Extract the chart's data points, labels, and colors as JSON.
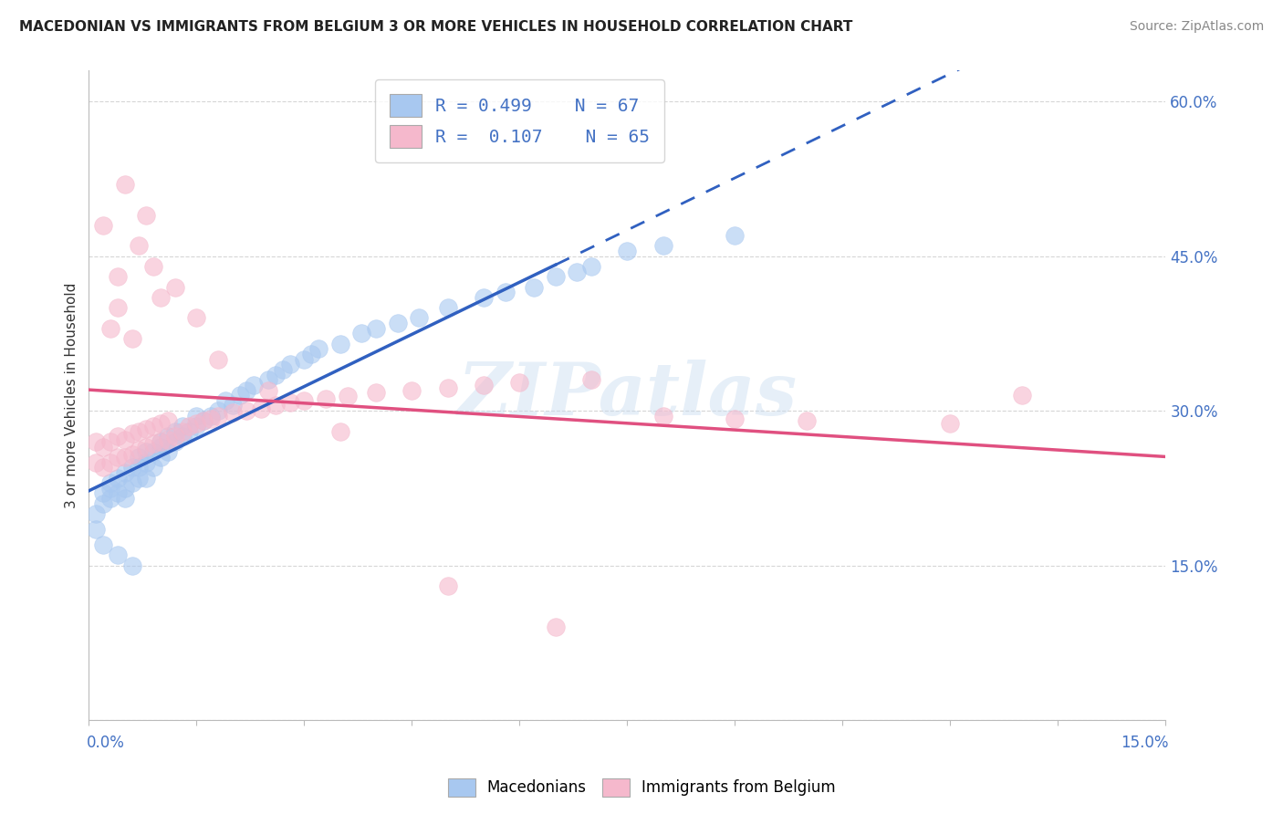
{
  "title": "MACEDONIAN VS IMMIGRANTS FROM BELGIUM 3 OR MORE VEHICLES IN HOUSEHOLD CORRELATION CHART",
  "source": "Source: ZipAtlas.com",
  "xmin": 0.0,
  "xmax": 0.15,
  "ymin": 0.0,
  "ymax": 0.63,
  "yticks": [
    0.0,
    0.15,
    0.3,
    0.45,
    0.6
  ],
  "yticklabels": [
    "",
    "15.0%",
    "30.0%",
    "45.0%",
    "60.0%"
  ],
  "color_blue": "#A8C8F0",
  "color_pink": "#F5B8CC",
  "color_blue_line": "#3060C0",
  "color_pink_line": "#E05080",
  "color_axis_text": "#4472C4",
  "watermark": "ZIPatlas",
  "ylabel_label": "3 or more Vehicles in Household",
  "legend_label1": "Macedonians",
  "legend_label2": "Immigrants from Belgium",
  "r1": 0.499,
  "n1": 67,
  "r2": 0.107,
  "n2": 65,
  "mac_x": [
    0.001,
    0.002,
    0.002,
    0.003,
    0.003,
    0.003,
    0.004,
    0.004,
    0.005,
    0.005,
    0.005,
    0.006,
    0.006,
    0.007,
    0.007,
    0.007,
    0.008,
    0.008,
    0.008,
    0.009,
    0.009,
    0.01,
    0.01,
    0.01,
    0.011,
    0.011,
    0.012,
    0.012,
    0.013,
    0.013,
    0.014,
    0.015,
    0.015,
    0.016,
    0.017,
    0.018,
    0.019,
    0.02,
    0.021,
    0.022,
    0.023,
    0.025,
    0.026,
    0.027,
    0.028,
    0.03,
    0.031,
    0.032,
    0.035,
    0.038,
    0.04,
    0.043,
    0.046,
    0.05,
    0.055,
    0.058,
    0.062,
    0.065,
    0.068,
    0.07,
    0.075,
    0.08,
    0.09,
    0.001,
    0.002,
    0.004,
    0.006
  ],
  "mac_y": [
    0.2,
    0.21,
    0.22,
    0.215,
    0.225,
    0.23,
    0.22,
    0.235,
    0.215,
    0.225,
    0.24,
    0.23,
    0.245,
    0.235,
    0.245,
    0.255,
    0.235,
    0.25,
    0.26,
    0.245,
    0.26,
    0.255,
    0.265,
    0.27,
    0.26,
    0.275,
    0.27,
    0.28,
    0.275,
    0.285,
    0.28,
    0.285,
    0.295,
    0.29,
    0.295,
    0.3,
    0.31,
    0.305,
    0.315,
    0.32,
    0.325,
    0.33,
    0.335,
    0.34,
    0.345,
    0.35,
    0.355,
    0.36,
    0.365,
    0.375,
    0.38,
    0.385,
    0.39,
    0.4,
    0.41,
    0.415,
    0.42,
    0.43,
    0.435,
    0.44,
    0.455,
    0.46,
    0.47,
    0.185,
    0.17,
    0.16,
    0.15
  ],
  "bel_x": [
    0.001,
    0.001,
    0.002,
    0.002,
    0.003,
    0.003,
    0.004,
    0.004,
    0.005,
    0.005,
    0.006,
    0.006,
    0.007,
    0.007,
    0.008,
    0.008,
    0.009,
    0.009,
    0.01,
    0.01,
    0.011,
    0.011,
    0.012,
    0.013,
    0.014,
    0.015,
    0.016,
    0.017,
    0.018,
    0.02,
    0.022,
    0.024,
    0.026,
    0.028,
    0.03,
    0.033,
    0.036,
    0.04,
    0.045,
    0.05,
    0.055,
    0.06,
    0.07,
    0.08,
    0.09,
    0.1,
    0.12,
    0.13,
    0.002,
    0.004,
    0.005,
    0.007,
    0.008,
    0.003,
    0.004,
    0.006,
    0.009,
    0.01,
    0.012,
    0.015,
    0.018,
    0.025,
    0.035,
    0.05,
    0.065
  ],
  "bel_y": [
    0.25,
    0.27,
    0.245,
    0.265,
    0.25,
    0.27,
    0.255,
    0.275,
    0.255,
    0.272,
    0.258,
    0.278,
    0.262,
    0.28,
    0.265,
    0.282,
    0.268,
    0.285,
    0.27,
    0.288,
    0.272,
    0.29,
    0.275,
    0.28,
    0.285,
    0.288,
    0.29,
    0.292,
    0.295,
    0.298,
    0.3,
    0.302,
    0.305,
    0.308,
    0.31,
    0.312,
    0.314,
    0.318,
    0.32,
    0.322,
    0.325,
    0.328,
    0.33,
    0.295,
    0.292,
    0.29,
    0.288,
    0.315,
    0.48,
    0.43,
    0.52,
    0.46,
    0.49,
    0.38,
    0.4,
    0.37,
    0.44,
    0.41,
    0.42,
    0.39,
    0.35,
    0.32,
    0.28,
    0.13,
    0.09
  ]
}
